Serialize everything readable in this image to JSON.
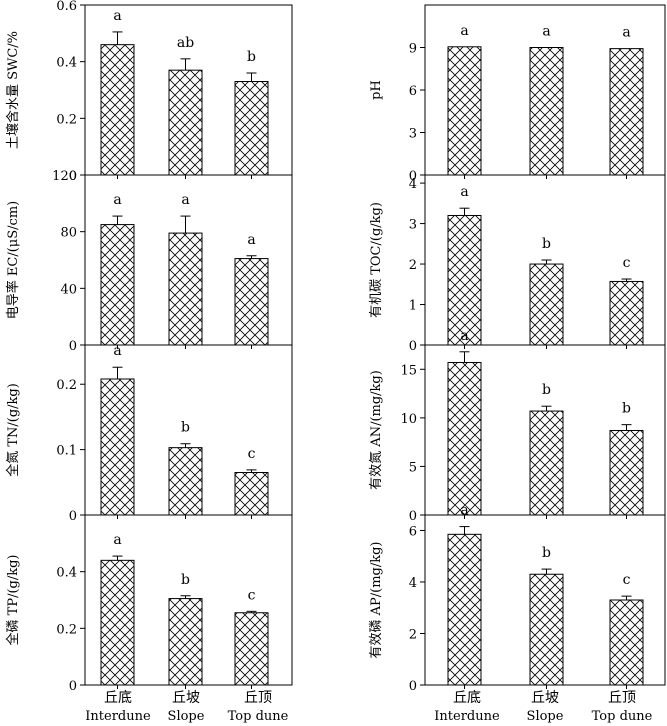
{
  "chart_data": [
    {
      "type": "bar",
      "ylabel": "土壤含水量 SWC/%",
      "categories": [
        "丘底 Interdune",
        "丘坡 Slope",
        "丘顶 Top dune"
      ],
      "values": [
        0.46,
        0.37,
        0.33
      ],
      "errors": [
        0.045,
        0.04,
        0.03
      ],
      "significance": [
        "a",
        "ab",
        "b"
      ],
      "ylim": [
        0,
        0.6
      ],
      "yticks": [
        "0",
        "0.2",
        "0.4",
        "0.6"
      ]
    },
    {
      "type": "bar",
      "ylabel": "pH",
      "categories": [
        "丘底 Interdune",
        "丘坡 Slope",
        "丘顶 Top dune"
      ],
      "values": [
        9.05,
        9.0,
        8.92
      ],
      "errors": [
        0.0,
        0.0,
        0.0
      ],
      "significance": [
        "a",
        "a",
        "a"
      ],
      "ylim": [
        0,
        12
      ],
      "yticks": [
        "0",
        "3",
        "6",
        "9"
      ]
    },
    {
      "type": "bar",
      "ylabel": "电导率 EC/(μS/cm)",
      "categories": [
        "丘底 Interdune",
        "丘坡 Slope",
        "丘顶 Top dune"
      ],
      "values": [
        85,
        79,
        61
      ],
      "errors": [
        6,
        12,
        2
      ],
      "significance": [
        "a",
        "a",
        "a"
      ],
      "ylim": [
        0,
        120
      ],
      "yticks": [
        "0",
        "40",
        "80",
        "120"
      ]
    },
    {
      "type": "bar",
      "ylabel": "有机碳 TOC/(g/kg)",
      "categories": [
        "丘底 Interdune",
        "丘坡 Slope",
        "丘顶 Top dune"
      ],
      "values": [
        3.2,
        2.0,
        1.57
      ],
      "errors": [
        0.18,
        0.1,
        0.06
      ],
      "significance": [
        "a",
        "b",
        "c"
      ],
      "ylim": [
        0,
        4.2
      ],
      "yticks": [
        "0",
        "1",
        "2",
        "3",
        "4"
      ]
    },
    {
      "type": "bar",
      "ylabel": "全氮 TN/(g/kg)",
      "categories": [
        "丘底 Interdune",
        "丘坡 Slope",
        "丘顶 Top dune"
      ],
      "values": [
        0.208,
        0.103,
        0.065
      ],
      "errors": [
        0.018,
        0.006,
        0.004
      ],
      "significance": [
        "a",
        "b",
        "c"
      ],
      "ylim": [
        0,
        0.26
      ],
      "yticks": [
        "0",
        "0.1",
        "0.2"
      ]
    },
    {
      "type": "bar",
      "ylabel": "有效氮 AN/(mg/kg)",
      "categories": [
        "丘底 Interdune",
        "丘坡 Slope",
        "丘顶 Top dune"
      ],
      "values": [
        15.7,
        10.7,
        8.7
      ],
      "errors": [
        1.1,
        0.5,
        0.6
      ],
      "significance": [
        "a",
        "b",
        "b"
      ],
      "ylim": [
        0,
        17.5
      ],
      "yticks": [
        "0",
        "5",
        "10",
        "15"
      ]
    },
    {
      "type": "bar",
      "ylabel": "全磷 TP/(g/kg)",
      "categories": [
        "丘底 Interdune",
        "丘坡 Slope",
        "丘顶 Top dune"
      ],
      "values": [
        0.44,
        0.305,
        0.255
      ],
      "errors": [
        0.015,
        0.01,
        0.005
      ],
      "significance": [
        "a",
        "b",
        "c"
      ],
      "ylim": [
        0,
        0.6
      ],
      "yticks": [
        "0",
        "0.2",
        "0.4"
      ]
    },
    {
      "type": "bar",
      "ylabel": "有效磷 AP/(mg/kg)",
      "categories": [
        "丘底 Interdune",
        "丘坡 Slope",
        "丘顶 Top dune"
      ],
      "values": [
        5.85,
        4.3,
        3.3
      ],
      "errors": [
        0.3,
        0.2,
        0.15
      ],
      "significance": [
        "a",
        "b",
        "c"
      ],
      "ylim": [
        0,
        6.6
      ],
      "yticks": [
        "0",
        "2",
        "4",
        "6"
      ]
    }
  ],
  "x_axis": {
    "categories_cn": [
      "丘底",
      "丘坡",
      "丘顶"
    ],
    "categories_en": [
      "Interdune",
      "Slope",
      "Top dune"
    ]
  }
}
